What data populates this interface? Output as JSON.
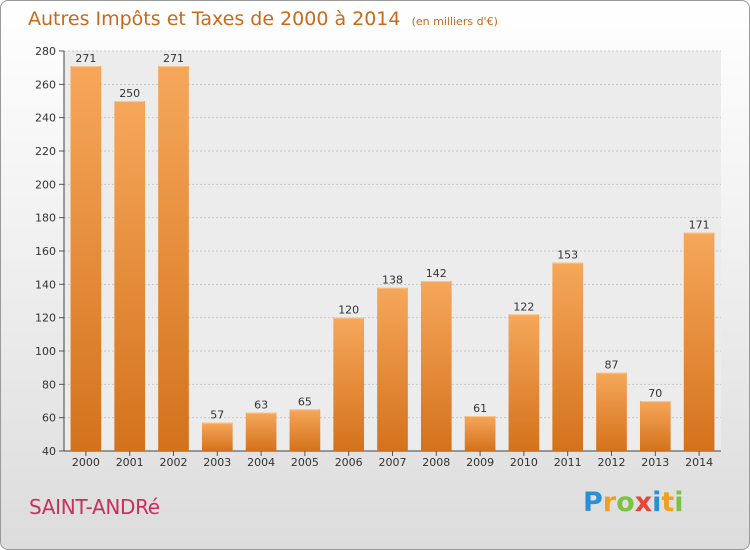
{
  "title": "Autres Impôts et Taxes de 2000 à 2014",
  "subtitle": "(en milliers d'€)",
  "commune": "SAINT-ANDRé",
  "logo": {
    "letters": [
      "P",
      "r",
      "o",
      "x",
      "i",
      "t",
      "i"
    ],
    "colors": [
      "#2a8fd6",
      "#f0a020",
      "#7cc242",
      "#e8443a",
      "#2a8fd6",
      "#f0a020",
      "#7cc242"
    ]
  },
  "colors": {
    "bar_top": "#f6a75a",
    "bar_bottom": "#d4721c",
    "accent_text": "#c8691c"
  },
  "chart_data": {
    "type": "bar",
    "categories": [
      "2000",
      "2001",
      "2002",
      "2003",
      "2004",
      "2005",
      "2006",
      "2007",
      "2008",
      "2009",
      "2010",
      "2011",
      "2012",
      "2013",
      "2014"
    ],
    "values": [
      271,
      250,
      271,
      57,
      63,
      65,
      120,
      138,
      142,
      61,
      122,
      153,
      87,
      70,
      171
    ],
    "ylim": [
      40,
      280
    ],
    "yticks": [
      40,
      60,
      80,
      100,
      120,
      140,
      160,
      180,
      200,
      220,
      240,
      260,
      280
    ],
    "grid": true,
    "data_labels": true
  }
}
